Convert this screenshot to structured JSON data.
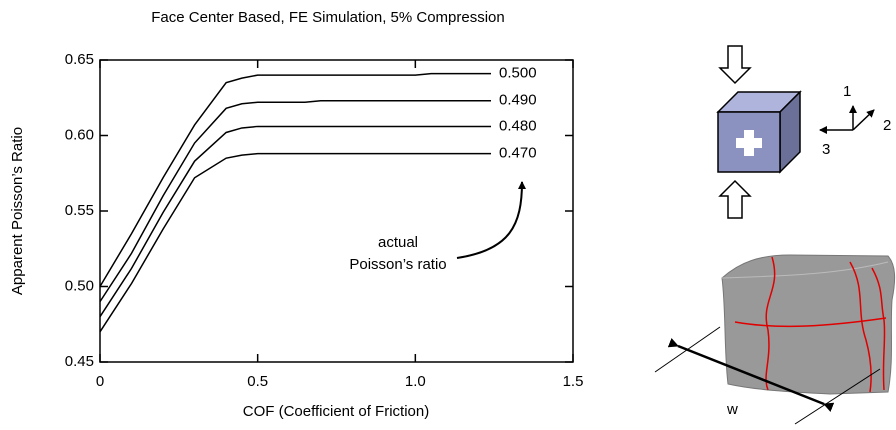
{
  "chart_data": {
    "type": "line",
    "title": "Face Center Based, FE Simulation, 5% Compression",
    "x_label": "COF (Coefficient of Friction)",
    "y_label": "Apparent Poisson’s Ratio",
    "annotation": [
      "actual",
      "Poisson’s ratio"
    ],
    "xlim": [
      0,
      1.5
    ],
    "xticks": [
      0,
      0.5,
      {
        "value": 1,
        "label": "1.0"
      },
      1.5
    ],
    "ylim": [
      0.45,
      0.65
    ],
    "yticks": [
      0.45,
      {
        "value": 0.5,
        "label": "0.50"
      },
      0.55,
      {
        "value": 0.6,
        "label": "0.60"
      },
      0.65
    ],
    "series": [
      {
        "name": "0.500",
        "color": "#000000",
        "x": [
          0,
          0.1,
          0.2,
          0.3,
          0.4,
          0.45,
          0.5,
          1.0,
          1.05,
          1.24
        ],
        "values": [
          0.5,
          0.535,
          0.572,
          0.607,
          0.635,
          0.638,
          0.64,
          0.64,
          0.641,
          0.641
        ]
      },
      {
        "name": "0.490",
        "color": "#000000",
        "x": [
          0,
          0.1,
          0.2,
          0.3,
          0.4,
          0.45,
          0.5,
          0.65,
          0.7,
          1.24
        ],
        "values": [
          0.49,
          0.522,
          0.56,
          0.595,
          0.618,
          0.621,
          0.622,
          0.622,
          0.623,
          0.623
        ]
      },
      {
        "name": "0.480",
        "color": "#000000",
        "x": [
          0,
          0.1,
          0.2,
          0.3,
          0.4,
          0.45,
          0.5,
          1.24
        ],
        "values": [
          0.48,
          0.512,
          0.549,
          0.583,
          0.602,
          0.605,
          0.606,
          0.606
        ]
      },
      {
        "name": "0.470",
        "color": "#000000",
        "x": [
          0,
          0.1,
          0.2,
          0.3,
          0.4,
          0.45,
          0.5,
          1.24
        ],
        "values": [
          0.47,
          0.502,
          0.538,
          0.572,
          0.585,
          0.587,
          0.588,
          0.588
        ]
      }
    ]
  },
  "diagram": {
    "axis_labels": [
      "1",
      "2",
      "3"
    ],
    "width_label": "w"
  }
}
